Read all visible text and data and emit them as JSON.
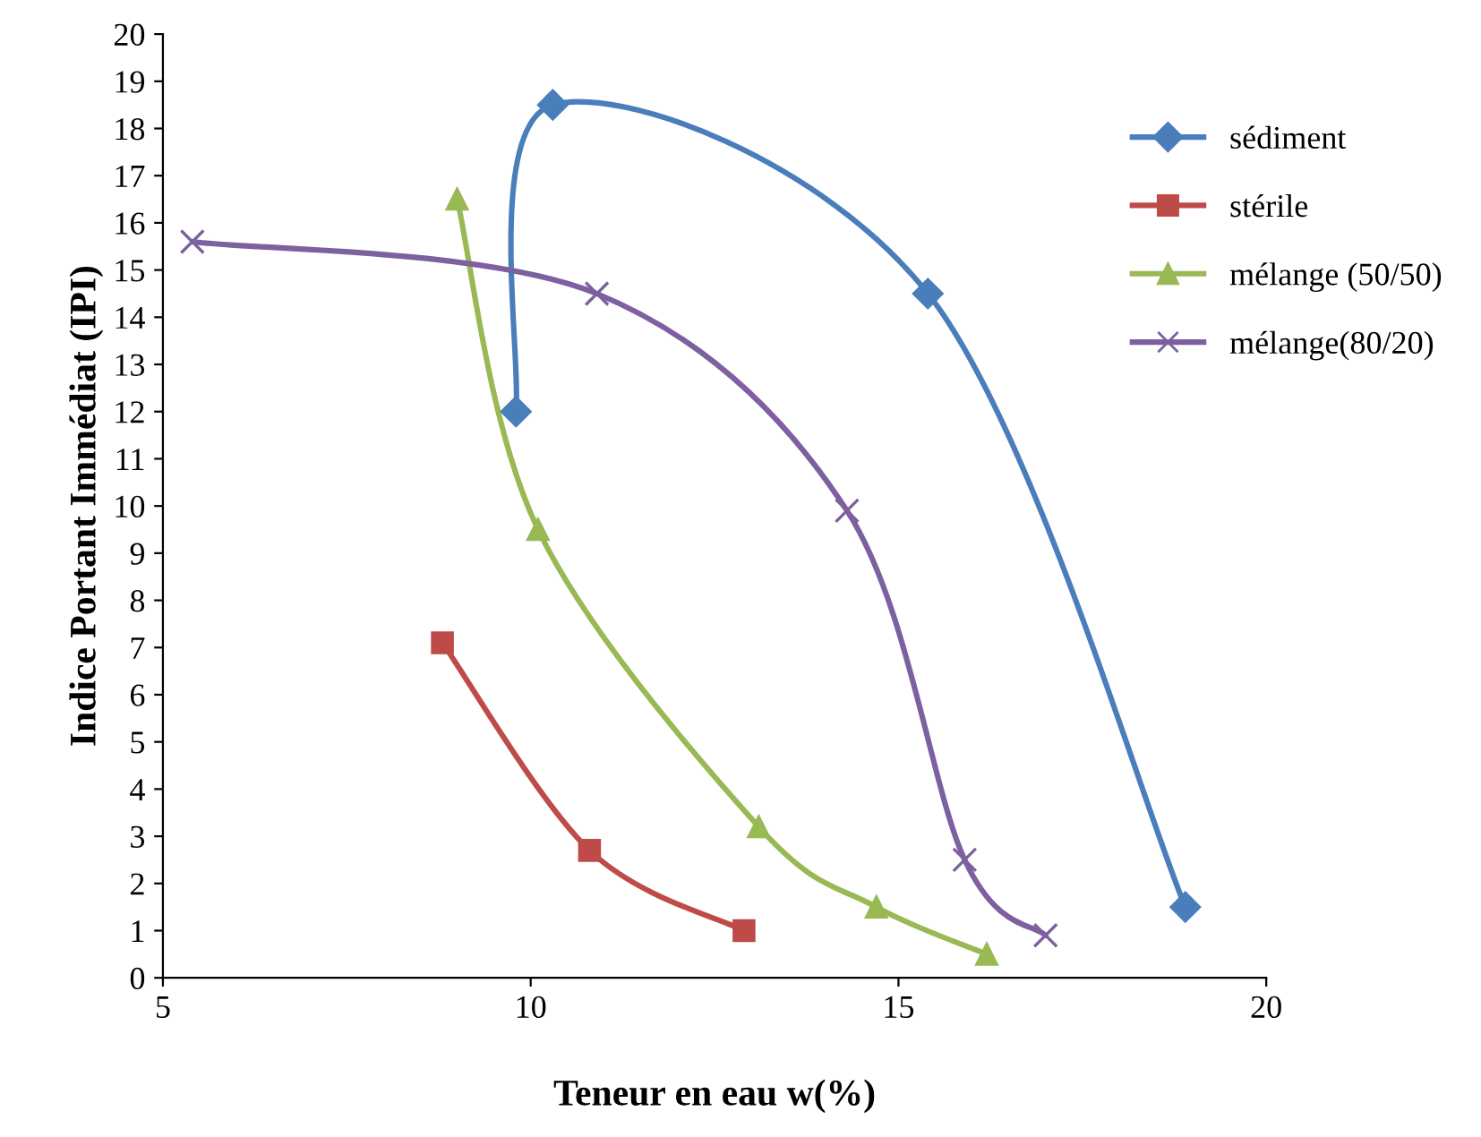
{
  "chart_data": {
    "type": "line",
    "xlabel": "Teneur en eau w(%)",
    "ylabel": "Indice Portant Immédiat (IPI)",
    "xlim": [
      5,
      20
    ],
    "xticks": [
      5,
      10,
      15,
      20
    ],
    "ylim": [
      0,
      20
    ],
    "yticks": [
      0,
      1,
      2,
      3,
      4,
      5,
      6,
      7,
      8,
      9,
      10,
      11,
      12,
      13,
      14,
      15,
      16,
      17,
      18,
      19,
      20
    ],
    "grid": false,
    "legend": "right",
    "series": [
      {
        "name": "sédiment",
        "color": "#4a7ebb",
        "marker": "diamond",
        "x": [
          9.8,
          10.3,
          15.4,
          18.9
        ],
        "values": [
          12,
          18.5,
          14.5,
          1.5
        ]
      },
      {
        "name": "stérile",
        "color": "#be4b48",
        "marker": "square",
        "x": [
          8.8,
          10.8,
          12.9
        ],
        "values": [
          7.1,
          2.7,
          1.0
        ]
      },
      {
        "name": "mélange (50/50)",
        "color": "#98b954",
        "marker": "triangle",
        "x": [
          9.0,
          10.1,
          13.1,
          14.7,
          16.2
        ],
        "values": [
          16.5,
          9.5,
          3.2,
          1.5,
          0.5
        ]
      },
      {
        "name": "mélange(80/20)",
        "color": "#7d60a0",
        "marker": "cross",
        "x": [
          5.4,
          10.9,
          14.3,
          15.9,
          17.0
        ],
        "values": [
          15.6,
          14.5,
          9.9,
          2.5,
          0.9
        ]
      }
    ]
  }
}
